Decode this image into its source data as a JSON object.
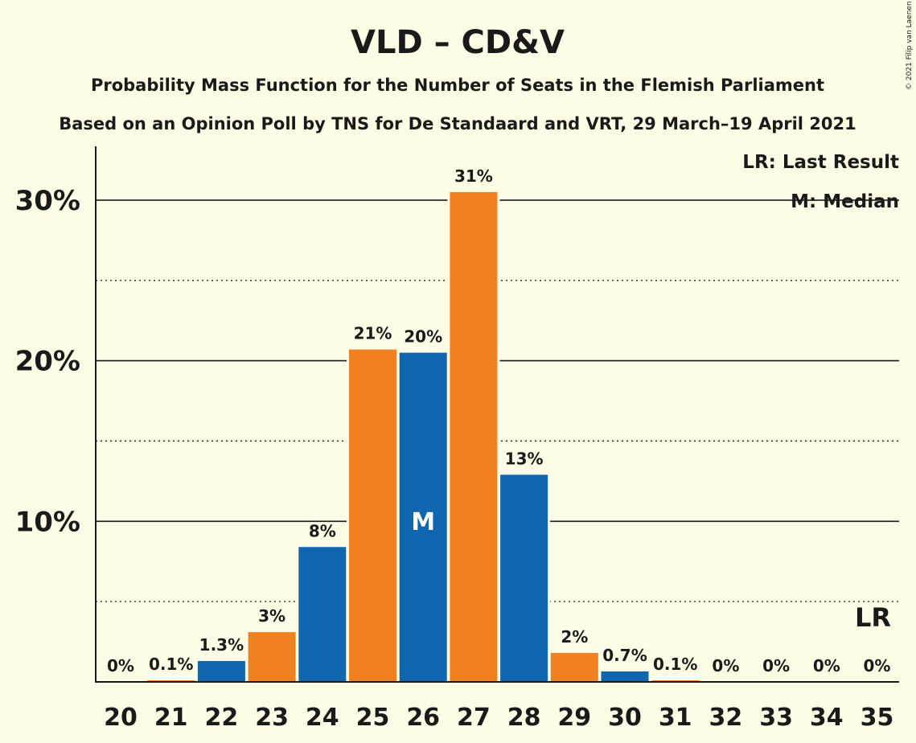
{
  "title": "VLD – CD&V",
  "subtitle_1": "Probability Mass Function for the Number of Seats in the Flemish Parliament",
  "subtitle_2": "Based on an Opinion Poll by TNS for De Standaard and VRT, 29 March–19 April 2021",
  "copyright": "© 2021 Filip van Laenen",
  "legend": {
    "last_result": "LR: Last Result",
    "median": "M: Median"
  },
  "colors": {
    "background": "#fffde6",
    "blue": "#1166b0",
    "orange": "#f08020",
    "text": "#1a1a1a"
  },
  "chart_data": {
    "type": "bar",
    "categories": [
      "20",
      "21",
      "22",
      "23",
      "24",
      "25",
      "26",
      "27",
      "28",
      "29",
      "30",
      "31",
      "32",
      "33",
      "34",
      "35"
    ],
    "values": [
      0,
      0.1,
      1.3,
      3.1,
      8.4,
      20.7,
      20.5,
      30.5,
      12.9,
      1.8,
      0.65,
      0.1,
      0,
      0,
      0,
      0
    ],
    "labels": [
      "0%",
      "0.1%",
      "1.3%",
      "3%",
      "8%",
      "21%",
      "20%",
      "31%",
      "13%",
      "2%",
      "0.7%",
      "0.1%",
      "0%",
      "0%",
      "0%",
      "0%"
    ],
    "bar_colors": [
      "blue",
      "orange",
      "blue",
      "orange",
      "blue",
      "orange",
      "blue",
      "orange",
      "blue",
      "orange",
      "blue",
      "orange",
      "blue",
      "orange",
      "blue",
      "orange"
    ],
    "ylim": [
      0,
      33
    ],
    "yticks": [
      10,
      20,
      30
    ],
    "ytick_labels": [
      "10%",
      "20%",
      "30%"
    ],
    "minor_gridlines": [
      5,
      15,
      25
    ],
    "median_seat": "26",
    "median_marker": "M",
    "last_result_seat": "35",
    "last_result_marker": "LR"
  }
}
